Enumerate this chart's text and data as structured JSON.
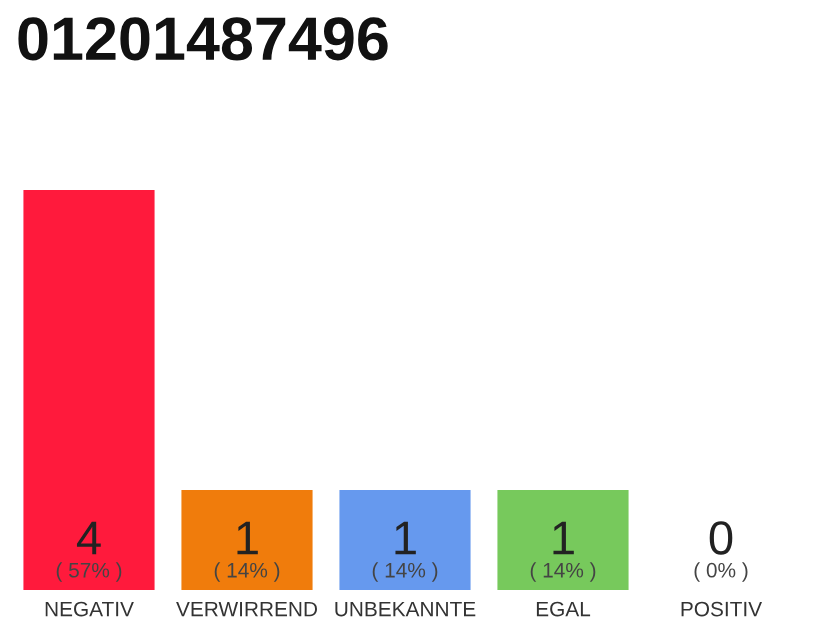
{
  "chart_data": {
    "type": "bar",
    "title": "01201487496",
    "categories": [
      "NEGATIV",
      "VERWIRREND",
      "UNBEKANNTE",
      "EGAL",
      "POSITIV"
    ],
    "values": [
      4,
      1,
      1,
      1,
      0
    ],
    "colors": [
      "#ff1a3c",
      "#f07c0c",
      "#6699ee",
      "#77c95c",
      "#cccccc"
    ],
    "ylim": [
      0,
      4
    ],
    "tick_labels": "x",
    "grid": false,
    "legend": false,
    "data_labels": true,
    "annotations": [
      {
        "text": "( 57% )",
        "x": "NEGATIV",
        "y": 0
      },
      {
        "text": "( 14% )",
        "x": "VERWIRREND",
        "y": 0
      },
      {
        "text": "( 14% )",
        "x": "UNBEKANNTE",
        "y": 0
      },
      {
        "text": "( 14% )",
        "x": "EGAL",
        "y": 0
      },
      {
        "text": "( 0% )",
        "x": "POSITIV",
        "y": 0
      }
    ]
  }
}
